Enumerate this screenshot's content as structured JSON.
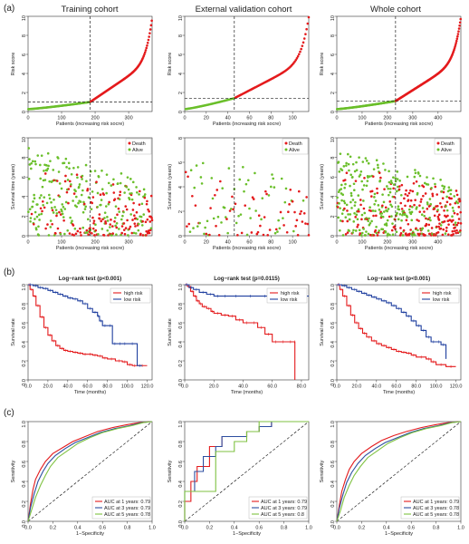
{
  "panel_letters": [
    "(a)",
    "(b)",
    "(c)"
  ],
  "cohort_titles": [
    "Training cohort",
    "External validation cohort",
    "Whole cohort"
  ],
  "chart_data": [
    {
      "type": "scatter",
      "panel": "risk_score",
      "cohort": "Training cohort",
      "xlabel": "Patients (increasing risk socre)",
      "ylabel": "Risk score",
      "xlim": [
        0,
        370
      ],
      "ylim": [
        0,
        10
      ],
      "xticks": [
        0,
        100,
        200,
        300
      ],
      "yticks": [
        0,
        2,
        4,
        6,
        8,
        10
      ],
      "cutoff_x": 185,
      "cutoff_y": 1.0,
      "n": 370,
      "max_score": 9.8
    },
    {
      "type": "scatter",
      "panel": "risk_score",
      "cohort": "External validation cohort",
      "xlabel": "Patients (increasing risk socre)",
      "ylabel": "Risk score",
      "xlim": [
        0,
        115
      ],
      "ylim": [
        0,
        10
      ],
      "xticks": [
        0,
        20,
        40,
        60,
        80,
        100
      ],
      "yticks": [
        0,
        2,
        4,
        6,
        8,
        10
      ],
      "cutoff_x": 46,
      "cutoff_y": 1.4,
      "n": 115,
      "max_score": 9.9
    },
    {
      "type": "scatter",
      "panel": "risk_score",
      "cohort": "Whole cohort",
      "xlabel": "Patients (increasing risk socre)",
      "ylabel": "Risk score",
      "xlim": [
        0,
        490
      ],
      "ylim": [
        0,
        10
      ],
      "xticks": [
        0,
        100,
        200,
        300,
        400,
        500
      ],
      "yticks": [
        0,
        2,
        4,
        6,
        8,
        10
      ],
      "cutoff_x": 232,
      "cutoff_y": 1.1,
      "n": 490,
      "max_score": 9.9
    },
    {
      "type": "scatter",
      "panel": "survival_status",
      "cohort": "Training cohort",
      "xlabel": "Patients (increasing risk socre)",
      "ylabel": "Survival time (years)",
      "xlim": [
        0,
        370
      ],
      "ylim": [
        0,
        10
      ],
      "xticks": [
        0,
        100,
        200,
        300
      ],
      "yticks": [
        0,
        2,
        4,
        6,
        8,
        10
      ],
      "cutoff_x": 185,
      "n": 370,
      "legend": [
        "Death",
        "Alive"
      ],
      "legend_position": "top-right"
    },
    {
      "type": "scatter",
      "panel": "survival_status",
      "cohort": "External validation cohort",
      "xlabel": "Patients (increasing risk socre)",
      "ylabel": "Survival time (years)",
      "xlim": [
        0,
        115
      ],
      "ylim": [
        0,
        8
      ],
      "xticks": [
        0,
        20,
        40,
        60,
        80,
        100
      ],
      "yticks": [
        0,
        2,
        4,
        6,
        8
      ],
      "cutoff_x": 46,
      "n": 115,
      "legend": [
        "Death",
        "Alive"
      ],
      "legend_position": "top-right"
    },
    {
      "type": "scatter",
      "panel": "survival_status",
      "cohort": "Whole cohort",
      "xlabel": "Patients (increasing risk socre)",
      "ylabel": "Survival time (years)",
      "xlim": [
        0,
        490
      ],
      "ylim": [
        0,
        10
      ],
      "xticks": [
        0,
        100,
        200,
        300,
        400,
        500
      ],
      "yticks": [
        0,
        2,
        4,
        6,
        8,
        10
      ],
      "cutoff_x": 232,
      "n": 490,
      "legend": [
        "Death",
        "Alive"
      ],
      "legend_position": "top-right"
    },
    {
      "type": "line",
      "panel": "km",
      "cohort": "Training cohort",
      "title": "Log−rank test (p<0.001)",
      "xlabel": "Time (months)",
      "ylabel": "Survival rate",
      "xlim": [
        0,
        125
      ],
      "ylim": [
        0,
        1
      ],
      "legend_position": "top-right",
      "xticks": [
        0,
        20,
        40,
        60,
        80,
        100,
        120
      ],
      "yticks": [
        0.0,
        0.2,
        0.4,
        0.6,
        0.8,
        1.0
      ],
      "series": [
        {
          "name": "high risk",
          "x": [
            0,
            2,
            5,
            8,
            12,
            16,
            20,
            24,
            28,
            32,
            36,
            40,
            45,
            50,
            55,
            60,
            65,
            70,
            75,
            80,
            88,
            95,
            100,
            105,
            110,
            120
          ],
          "y": [
            1.0,
            0.95,
            0.88,
            0.78,
            0.66,
            0.55,
            0.47,
            0.41,
            0.36,
            0.33,
            0.31,
            0.3,
            0.29,
            0.28,
            0.27,
            0.27,
            0.26,
            0.25,
            0.23,
            0.22,
            0.2,
            0.19,
            0.16,
            0.15,
            0.15,
            0.15
          ]
        },
        {
          "name": "low risk",
          "x": [
            0,
            5,
            10,
            15,
            20,
            25,
            30,
            35,
            40,
            45,
            50,
            55,
            60,
            65,
            70,
            72,
            75,
            80,
            85,
            90,
            95,
            100,
            110,
            115
          ],
          "y": [
            1.0,
            0.99,
            0.97,
            0.96,
            0.94,
            0.92,
            0.9,
            0.88,
            0.86,
            0.85,
            0.83,
            0.8,
            0.75,
            0.71,
            0.67,
            0.62,
            0.57,
            0.57,
            0.38,
            0.38,
            0.38,
            0.38,
            0.15,
            0.15
          ]
        }
      ]
    },
    {
      "type": "line",
      "panel": "km",
      "cohort": "External validation cohort",
      "title": "Log−rank test (p=0.0115)",
      "xlabel": "Time (months)",
      "ylabel": "Survival rate",
      "xlim": [
        0,
        85
      ],
      "ylim": [
        0,
        1
      ],
      "legend_position": "top-right",
      "xticks": [
        0,
        20,
        40,
        60,
        80
      ],
      "yticks": [
        0.0,
        0.2,
        0.4,
        0.6,
        0.8,
        1.0
      ],
      "series": [
        {
          "name": "high risk",
          "x": [
            0,
            2,
            4,
            6,
            8,
            10,
            12,
            15,
            18,
            20,
            25,
            30,
            35,
            40,
            45,
            50,
            55,
            60,
            65,
            70,
            75,
            75.5
          ],
          "y": [
            1.0,
            0.98,
            0.93,
            0.88,
            0.83,
            0.8,
            0.77,
            0.75,
            0.72,
            0.7,
            0.68,
            0.67,
            0.63,
            0.6,
            0.6,
            0.55,
            0.48,
            0.4,
            0.4,
            0.4,
            0.4,
            0.0
          ]
        },
        {
          "name": "low risk",
          "x": [
            0,
            3,
            6,
            10,
            15,
            20,
            25,
            30,
            40,
            50,
            60,
            70,
            80,
            85
          ],
          "y": [
            1.0,
            0.97,
            0.95,
            0.92,
            0.9,
            0.88,
            0.88,
            0.88,
            0.88,
            0.88,
            0.88,
            0.88,
            0.88,
            0.88
          ]
        }
      ]
    },
    {
      "type": "line",
      "panel": "km",
      "cohort": "Whole cohort",
      "title": "Log−rank test (p<0.001)",
      "xlabel": "Time (months)",
      "ylabel": "Survival rate",
      "xlim": [
        0,
        125
      ],
      "ylim": [
        0,
        1
      ],
      "legend_position": "top-right",
      "xticks": [
        0,
        20,
        40,
        60,
        80,
        100,
        120
      ],
      "yticks": [
        0.0,
        0.2,
        0.4,
        0.6,
        0.8,
        1.0
      ],
      "series": [
        {
          "name": "high risk",
          "x": [
            0,
            3,
            6,
            10,
            14,
            18,
            22,
            26,
            30,
            35,
            40,
            45,
            50,
            55,
            60,
            65,
            70,
            75,
            80,
            90,
            95,
            100,
            110,
            120
          ],
          "y": [
            1.0,
            0.95,
            0.88,
            0.78,
            0.68,
            0.6,
            0.54,
            0.49,
            0.45,
            0.41,
            0.38,
            0.36,
            0.34,
            0.32,
            0.3,
            0.29,
            0.28,
            0.26,
            0.24,
            0.22,
            0.19,
            0.16,
            0.14,
            0.14
          ]
        },
        {
          "name": "low risk",
          "x": [
            0,
            5,
            10,
            15,
            20,
            25,
            30,
            35,
            40,
            45,
            50,
            55,
            60,
            65,
            70,
            75,
            80,
            85,
            90,
            95,
            100,
            105,
            110
          ],
          "y": [
            1.0,
            0.99,
            0.97,
            0.95,
            0.93,
            0.91,
            0.89,
            0.87,
            0.85,
            0.83,
            0.81,
            0.78,
            0.75,
            0.71,
            0.67,
            0.62,
            0.57,
            0.52,
            0.45,
            0.4,
            0.4,
            0.37,
            0.22
          ]
        }
      ]
    },
    {
      "type": "line",
      "panel": "roc",
      "cohort": "Training cohort",
      "xlabel": "1−Specificity",
      "ylabel": "Sensitivity",
      "xlim": [
        0,
        1
      ],
      "ylim": [
        0,
        1
      ],
      "legend_position": "bottom-right",
      "xticks": [
        0.0,
        0.2,
        0.4,
        0.6,
        0.8,
        1.0
      ],
      "yticks": [
        0.0,
        0.2,
        0.4,
        0.6,
        0.8,
        1.0
      ],
      "series": [
        {
          "name": "AUC at 1 years: 0.79",
          "x": [
            0,
            0.02,
            0.04,
            0.06,
            0.1,
            0.14,
            0.2,
            0.28,
            0.36,
            0.46,
            0.56,
            0.68,
            0.8,
            0.9,
            1.0
          ],
          "y": [
            0,
            0.18,
            0.32,
            0.42,
            0.52,
            0.6,
            0.68,
            0.74,
            0.8,
            0.85,
            0.9,
            0.94,
            0.97,
            0.99,
            1.0
          ]
        },
        {
          "name": "AUC at 3 years: 0.79",
          "x": [
            0,
            0.02,
            0.05,
            0.08,
            0.12,
            0.16,
            0.22,
            0.3,
            0.38,
            0.48,
            0.58,
            0.7,
            0.82,
            0.92,
            1.0
          ],
          "y": [
            0,
            0.14,
            0.28,
            0.4,
            0.5,
            0.58,
            0.66,
            0.73,
            0.79,
            0.84,
            0.89,
            0.93,
            0.96,
            0.99,
            1.0
          ]
        },
        {
          "name": "AUC at 5 years: 0.78",
          "x": [
            0,
            0.03,
            0.06,
            0.1,
            0.14,
            0.18,
            0.24,
            0.32,
            0.4,
            0.5,
            0.6,
            0.72,
            0.84,
            0.93,
            1.0
          ],
          "y": [
            0,
            0.12,
            0.24,
            0.36,
            0.46,
            0.55,
            0.64,
            0.71,
            0.78,
            0.84,
            0.89,
            0.93,
            0.96,
            0.99,
            1.0
          ]
        }
      ]
    },
    {
      "type": "line",
      "panel": "roc",
      "cohort": "External validation cohort",
      "xlabel": "1−Specificity",
      "ylabel": "Sensitivity",
      "xlim": [
        0,
        1
      ],
      "ylim": [
        0,
        1
      ],
      "legend_position": "bottom-right",
      "xticks": [
        0.0,
        0.2,
        0.4,
        0.6,
        0.8,
        1.0
      ],
      "yticks": [
        0.0,
        0.2,
        0.4,
        0.6,
        0.8,
        1.0
      ],
      "series": [
        {
          "name": "AUC at 1 years: 0.79",
          "x": [
            0,
            0,
            0.05,
            0.05,
            0.1,
            0.1,
            0.2,
            0.2,
            0.3,
            0.3,
            0.5,
            0.5,
            0.6,
            0.6,
            0.7,
            0.7,
            1.0
          ],
          "y": [
            0,
            0.2,
            0.2,
            0.4,
            0.4,
            0.55,
            0.55,
            0.75,
            0.75,
            0.85,
            0.85,
            0.9,
            0.9,
            0.95,
            0.95,
            1.0,
            1.0
          ]
        },
        {
          "name": "AUC at 3 years: 0.79",
          "x": [
            0,
            0,
            0.08,
            0.08,
            0.15,
            0.15,
            0.25,
            0.25,
            0.3,
            0.3,
            0.5,
            0.5,
            0.6,
            0.6,
            0.7,
            0.7,
            1.0
          ],
          "y": [
            0,
            0.3,
            0.3,
            0.5,
            0.5,
            0.65,
            0.65,
            0.75,
            0.75,
            0.85,
            0.85,
            0.9,
            0.9,
            0.95,
            0.95,
            1.0,
            1.0
          ]
        },
        {
          "name": "AUC at 5 years: 0.8",
          "x": [
            0,
            0,
            0.1,
            0.1,
            0.25,
            0.25,
            0.4,
            0.4,
            0.5,
            0.5,
            0.6,
            0.6,
            1.0
          ],
          "y": [
            0,
            0.3,
            0.3,
            0.3,
            0.3,
            0.7,
            0.7,
            0.8,
            0.8,
            0.9,
            0.9,
            1.0,
            1.0
          ]
        }
      ]
    },
    {
      "type": "line",
      "panel": "roc",
      "cohort": "Whole cohort",
      "xlabel": "1−Specificity",
      "ylabel": "Sensitivity",
      "xlim": [
        0,
        1
      ],
      "ylim": [
        0,
        1
      ],
      "legend_position": "bottom-right",
      "xticks": [
        0.0,
        0.2,
        0.4,
        0.6,
        0.8,
        1.0
      ],
      "yticks": [
        0.0,
        0.2,
        0.4,
        0.6,
        0.8,
        1.0
      ],
      "series": [
        {
          "name": "AUC at 1 years: 0.79",
          "x": [
            0,
            0.02,
            0.04,
            0.07,
            0.1,
            0.14,
            0.2,
            0.28,
            0.36,
            0.46,
            0.56,
            0.68,
            0.8,
            0.9,
            1.0
          ],
          "y": [
            0,
            0.16,
            0.3,
            0.42,
            0.52,
            0.6,
            0.68,
            0.75,
            0.81,
            0.86,
            0.9,
            0.94,
            0.97,
            0.99,
            1.0
          ]
        },
        {
          "name": "AUC at 3 years: 0.78",
          "x": [
            0,
            0.02,
            0.05,
            0.08,
            0.12,
            0.17,
            0.23,
            0.31,
            0.39,
            0.49,
            0.59,
            0.7,
            0.82,
            0.92,
            1.0
          ],
          "y": [
            0,
            0.13,
            0.27,
            0.39,
            0.49,
            0.58,
            0.66,
            0.73,
            0.79,
            0.84,
            0.89,
            0.93,
            0.96,
            0.99,
            1.0
          ]
        },
        {
          "name": "AUC at 5 years: 0.78",
          "x": [
            0,
            0.03,
            0.06,
            0.1,
            0.14,
            0.19,
            0.25,
            0.33,
            0.41,
            0.51,
            0.61,
            0.72,
            0.84,
            0.93,
            1.0
          ],
          "y": [
            0,
            0.11,
            0.24,
            0.36,
            0.46,
            0.55,
            0.64,
            0.71,
            0.78,
            0.84,
            0.89,
            0.93,
            0.96,
            0.99,
            1.0
          ]
        }
      ]
    }
  ],
  "colors": {
    "red": "#e41a1c",
    "green": "#6abf2a",
    "blue": "#1f3f9f",
    "roc_red": "#e31a1c",
    "roc_blue": "#2c4ea0",
    "roc_green": "#7fc241"
  }
}
